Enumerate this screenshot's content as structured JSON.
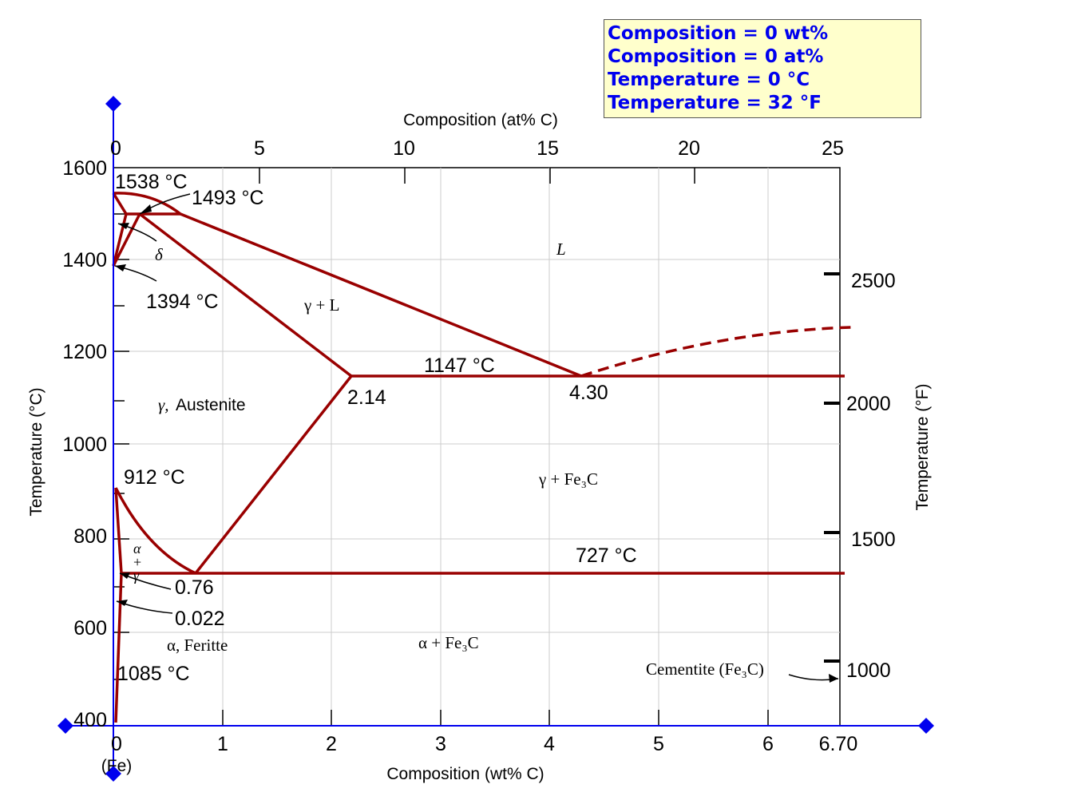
{
  "readout": {
    "composition_wt": "Composition = 0 wt%",
    "composition_at": "Composition = 0 at%",
    "temperature_c": "Temperature = 0 °C",
    "temperature_f": "Temperature = 32 °F"
  },
  "axes": {
    "top_label": "Composition (at% C)",
    "bottom_label": "Composition (wt% C)",
    "left_label": "Temperature (°C)",
    "right_label": "Temperature (°F)",
    "fe_label": "(Fe)",
    "bottom_ticks": [
      "0",
      "1",
      "2",
      "3",
      "4",
      "5",
      "6",
      "6.70"
    ],
    "top_ticks": [
      "0",
      "5",
      "10",
      "15",
      "20",
      "25"
    ],
    "left_ticks": [
      "400",
      "600",
      "800",
      "1000",
      "1200",
      "1400",
      "1600"
    ],
    "right_ticks": [
      "1000",
      "1500",
      "2000",
      "2500"
    ]
  },
  "labels": {
    "t1538": "1538 °C",
    "t1493": "1493 °C",
    "t1394": "1394 °C",
    "t1147": "1147 °C",
    "t912": "912 °C",
    "t727": "727 °C",
    "t1085": "1085 °C",
    "c214": "2.14",
    "c430": "4.30",
    "c076": "0.76",
    "c0022": "0.022",
    "liquid": "L",
    "delta": "δ",
    "gamma_l": "γ + L",
    "gamma_name": "γ,",
    "austenite": "Austenite",
    "gamma_fe3c": "γ + Fe₃C",
    "alpha_fe3c": "α + Fe₃C",
    "alpha_ferrite": "α, Feritte",
    "cementite": "Cementite (Fe₃C)",
    "ag_alpha": "α",
    "ag_plus": "+",
    "ag_gamma": "γ"
  },
  "colors": {
    "phase_line": "#990000",
    "cursor": "#0000ee",
    "grid": "#cccccc",
    "readout_bg": "#ffffcc"
  }
}
